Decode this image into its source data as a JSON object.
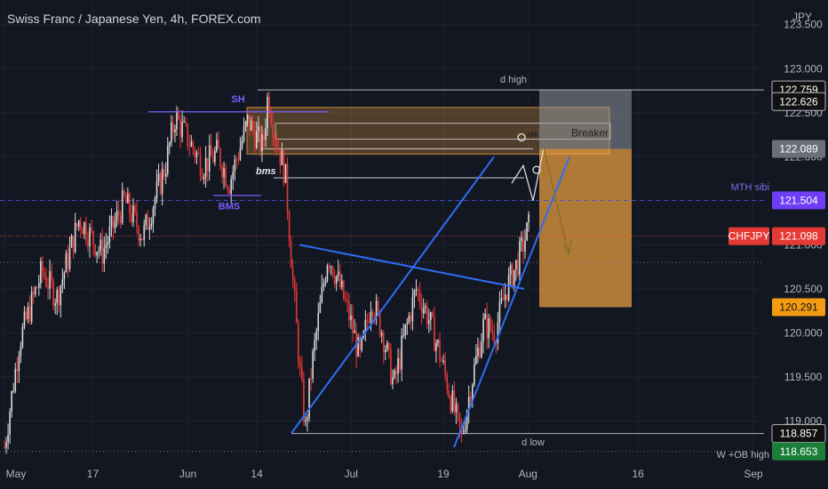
{
  "header": {
    "title": "Swiss Franc / Japanese Yen, 4h, FOREX.com"
  },
  "colors": {
    "background": "#131722",
    "bull": "#d9d9d9",
    "bear": "#e53935",
    "trendline": "#2f6df6",
    "swing_line": "#7b5cff",
    "zone_fill": "#f2a541",
    "breaker_fill": "#9aa0aa",
    "price_label": "#e53935",
    "sibi_label": "#6e3df5",
    "target_label": "#f39c12",
    "low_label": "#1b7f3a"
  },
  "chart_data": {
    "type": "candlestick",
    "symbol": "CHFJPY",
    "timeframe": "4h",
    "y_axis": {
      "unit": "JPY",
      "range": [
        118.58,
        123.78
      ],
      "ticks": [
        "123.500",
        "123.000",
        "122.500",
        "122.000",
        "121.500",
        "121.000",
        "120.500",
        "120.000",
        "119.500",
        "119.000"
      ]
    },
    "x_axis": {
      "labels": [
        "May",
        "17",
        "Jun",
        "14",
        "Jul",
        "19",
        "Aug",
        "16",
        "Sep"
      ],
      "label_positions": [
        0.0,
        0.118,
        0.245,
        0.337,
        0.463,
        0.586,
        0.699,
        0.846,
        1.0
      ]
    },
    "price_path": [
      [
        0.0,
        118.7
      ],
      [
        0.02,
        119.9
      ],
      [
        0.05,
        120.7
      ],
      [
        0.07,
        120.4
      ],
      [
        0.1,
        121.3
      ],
      [
        0.13,
        120.9
      ],
      [
        0.16,
        121.5
      ],
      [
        0.185,
        121.1
      ],
      [
        0.215,
        121.9
      ],
      [
        0.228,
        122.45
      ],
      [
        0.245,
        122.2
      ],
      [
        0.265,
        121.9
      ],
      [
        0.285,
        122.05
      ],
      [
        0.3,
        121.7
      ],
      [
        0.325,
        122.4
      ],
      [
        0.345,
        122.1
      ],
      [
        0.352,
        122.72
      ],
      [
        0.36,
        122.3
      ],
      [
        0.375,
        121.8
      ],
      [
        0.385,
        120.6
      ],
      [
        0.395,
        119.5
      ],
      [
        0.402,
        118.9
      ],
      [
        0.41,
        119.6
      ],
      [
        0.42,
        120.2
      ],
      [
        0.432,
        120.9
      ],
      [
        0.445,
        120.6
      ],
      [
        0.46,
        120.2
      ],
      [
        0.475,
        119.7
      ],
      [
        0.49,
        120.4
      ],
      [
        0.505,
        120.0
      ],
      [
        0.52,
        119.4
      ],
      [
        0.535,
        120.0
      ],
      [
        0.55,
        120.5
      ],
      [
        0.565,
        120.2
      ],
      [
        0.58,
        119.8
      ],
      [
        0.595,
        119.3
      ],
      [
        0.61,
        118.8
      ],
      [
        0.625,
        119.5
      ],
      [
        0.64,
        120.1
      ],
      [
        0.655,
        120.0
      ],
      [
        0.67,
        120.5
      ],
      [
        0.685,
        120.8
      ],
      [
        0.7,
        121.2
      ]
    ],
    "current_price": 121.098,
    "levels": [
      {
        "name": "d high",
        "price": 122.759,
        "label": "122.759",
        "style": "solid"
      },
      {
        "name": "breaker-top",
        "price": 122.626,
        "label": "122.626",
        "style": "none"
      },
      {
        "name": "breaker-bottom",
        "price": 122.089,
        "label": "122.089",
        "style": "none"
      },
      {
        "name": "MTH sibi",
        "price": 121.504,
        "label": "121.504",
        "style": "dashed"
      },
      {
        "name": "target",
        "price": 120.291,
        "label": "120.291",
        "style": "none"
      },
      {
        "name": "d low",
        "price": 118.857,
        "label": "118.857",
        "style": "solid"
      },
      {
        "name": "W +OB high",
        "price": 118.653,
        "label": "118.653",
        "style": "dotted"
      }
    ],
    "annotations": [
      "SH",
      "BMS",
      "bms",
      "Breaker",
      "H4",
      "d  high",
      "d  low",
      "MTH sibi",
      "W +OB high"
    ]
  }
}
